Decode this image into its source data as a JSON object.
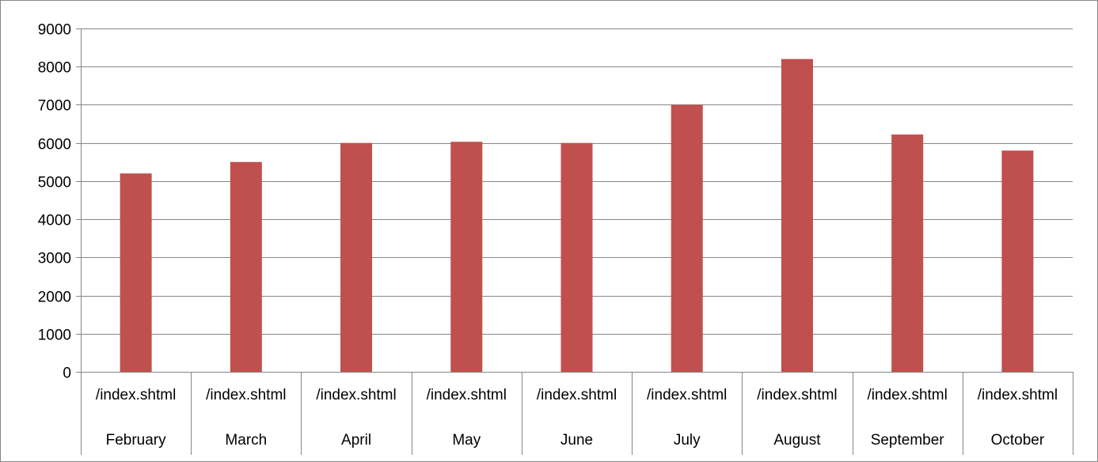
{
  "chart_data": {
    "type": "bar",
    "title": "",
    "xlabel": "",
    "ylabel": "",
    "ylim": [
      0,
      9000
    ],
    "yticks": [
      0,
      1000,
      2000,
      3000,
      4000,
      5000,
      6000,
      7000,
      8000,
      9000
    ],
    "grid": true,
    "legend": "none",
    "categories": [
      {
        "label": "/index.shtml",
        "group": "February"
      },
      {
        "label": "/index.shtml",
        "group": "March"
      },
      {
        "label": "/index.shtml",
        "group": "April"
      },
      {
        "label": "/index.shtml",
        "group": "May"
      },
      {
        "label": "/index.shtml",
        "group": "June"
      },
      {
        "label": "/index.shtml",
        "group": "July"
      },
      {
        "label": "/index.shtml",
        "group": "August"
      },
      {
        "label": "/index.shtml",
        "group": "September"
      },
      {
        "label": "/index.shtml",
        "group": "October"
      }
    ],
    "values": [
      5200,
      5500,
      6000,
      6030,
      6000,
      7000,
      8200,
      6220,
      5800
    ],
    "colors": {
      "bar": "#C0504D",
      "grid": "#868686",
      "axis": "#868686"
    }
  }
}
